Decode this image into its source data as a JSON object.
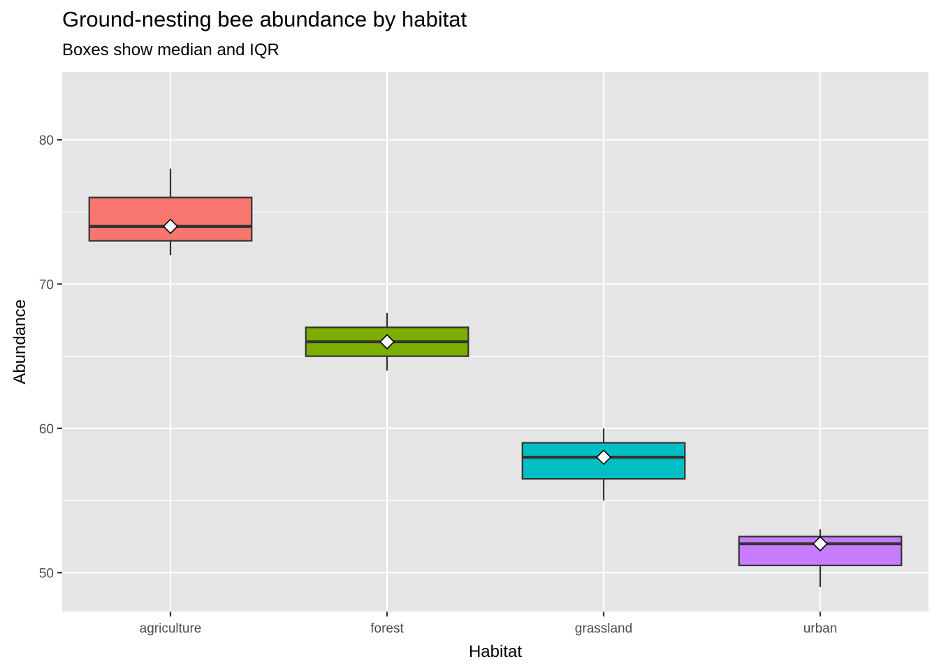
{
  "chart_data": {
    "type": "box",
    "title": "Ground-nesting bee abundance by habitat",
    "subtitle": "Boxes show median and IQR",
    "xlabel": "Habitat",
    "ylabel": "Abundance",
    "ylim": [
      47.3,
      84.7
    ],
    "yticks": [
      50,
      60,
      70,
      80
    ],
    "categories": [
      "agriculture",
      "forest",
      "grassland",
      "urban"
    ],
    "boxes": [
      {
        "category": "agriculture",
        "min": 72,
        "q1": 73,
        "median": 74,
        "q3": 76,
        "max": 78,
        "mean": 74,
        "color": "#F8766D"
      },
      {
        "category": "forest",
        "min": 64,
        "q1": 65,
        "median": 66,
        "q3": 67,
        "max": 68,
        "mean": 66,
        "color": "#7CAE00"
      },
      {
        "category": "grassland",
        "min": 55,
        "q1": 56.5,
        "median": 58,
        "q3": 59,
        "max": 60,
        "mean": 58,
        "color": "#00BFC4"
      },
      {
        "category": "urban",
        "min": 49,
        "q1": 50.5,
        "median": 52,
        "q3": 52.5,
        "max": 53,
        "mean": 52,
        "color": "#C77CFF"
      }
    ],
    "grid": true,
    "panel_background": "#E5E5E5",
    "grid_color": "#FFFFFF",
    "mean_marker": "white-diamond"
  }
}
